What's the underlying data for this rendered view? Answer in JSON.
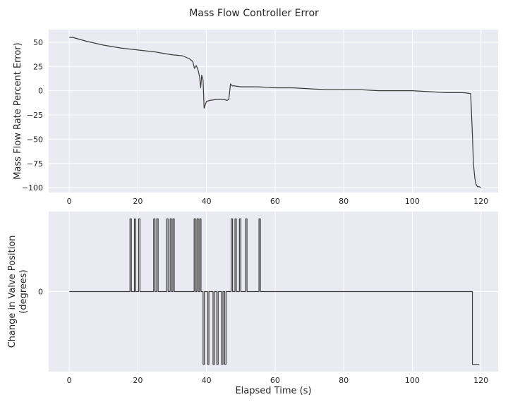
{
  "chart_data": [
    {
      "type": "line",
      "title": "Mass Flow Controller Error",
      "xlabel": "",
      "ylabel": "Mass Flow Rate Percent Error)",
      "xlim": [
        -6,
        125
      ],
      "ylim": [
        -105,
        63
      ],
      "xticks": [
        0,
        20,
        40,
        60,
        80,
        100,
        120
      ],
      "yticks": [
        50,
        25,
        0,
        -25,
        -50,
        -75,
        -100
      ],
      "ytick_labels": [
        "50",
        "25",
        "0",
        "−25",
        "−50",
        "−75",
        "−100"
      ],
      "grid": true,
      "series": [
        {
          "color": "#3a3a3a",
          "x": [
            0,
            1,
            2,
            5,
            10,
            15,
            20,
            25,
            30,
            33,
            35,
            36,
            36.5,
            37,
            37.5,
            38,
            38.3,
            38.6,
            39,
            39.3,
            40,
            41,
            43,
            45,
            46,
            46.5,
            47,
            47.5,
            48,
            50,
            55,
            60,
            65,
            70,
            75,
            80,
            85,
            90,
            95,
            100,
            105,
            110,
            115,
            117,
            117.5,
            117.8,
            118.2,
            118.6,
            119,
            119.5,
            120
          ],
          "y": [
            55,
            55,
            54,
            51,
            47,
            44,
            42,
            40,
            37,
            36,
            33,
            30,
            23,
            26,
            22,
            14,
            3,
            16,
            11,
            -18,
            -11,
            -10,
            -9,
            -9,
            -10,
            -9,
            7,
            5,
            5,
            4,
            4,
            3,
            3,
            2,
            1,
            1,
            1,
            0,
            0,
            0,
            -1,
            -2,
            -2,
            -3,
            -45,
            -75,
            -90,
            -97,
            -99,
            -99,
            -100
          ]
        }
      ]
    },
    {
      "type": "line",
      "title": "",
      "xlabel": "Elapsed Time (s)",
      "ylabel": "Change in Valve Position\n(degrees)",
      "xlim": [
        -6,
        125
      ],
      "ylim": [
        -1.1,
        1.1
      ],
      "xticks": [
        0,
        20,
        40,
        60,
        80,
        100,
        120
      ],
      "yticks": [
        0
      ],
      "ytick_labels": [
        "0"
      ],
      "grid": true,
      "series": [
        {
          "color": "#3a3a3a",
          "step_change_times": [
            17.7,
            18.1,
            19.0,
            19.3,
            20.2,
            20.6,
            24.6,
            25.0,
            25.5,
            25.9,
            28.4,
            28.8,
            29.4,
            29.8,
            30.2,
            30.6,
            36.4,
            36.8,
            37.2,
            37.6,
            38.0,
            38.4,
            39.0,
            39.4,
            40.3,
            40.7,
            41.9,
            42.3,
            43.0,
            43.4,
            44.4,
            44.8,
            45.3,
            45.7,
            47.2,
            47.6,
            48.3,
            48.7,
            49.6,
            50.0,
            51.4,
            51.8,
            55.3,
            55.7,
            117.5
          ],
          "step_states": [
            0,
            1,
            0,
            1,
            0,
            1,
            0,
            1,
            0,
            1,
            0,
            1,
            0,
            1,
            0,
            1,
            0,
            1,
            0,
            1,
            0,
            1,
            0,
            -1,
            0,
            -1,
            0,
            -1,
            0,
            -1,
            0,
            -1,
            0,
            -1,
            0,
            1,
            0,
            1,
            0,
            1,
            0,
            1,
            0,
            1,
            0,
            -1
          ],
          "x_end": 119.5
        }
      ]
    }
  ]
}
